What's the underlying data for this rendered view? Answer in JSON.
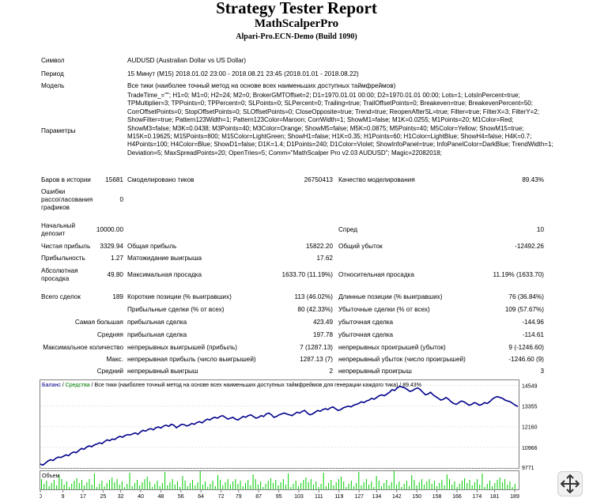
{
  "header": {
    "title": "Strategy Tester Report",
    "subtitle": "MathScalperPro",
    "build": "Alpari-Pro.ECN-Demo (Build 1090)"
  },
  "info": {
    "symbol_label": "Символ",
    "symbol_value": "AUDUSD (Australian Dollar vs US Dollar)",
    "period_label": "Период",
    "period_value": "15 Минут (M15) 2018.01.02 23:00 - 2018.08.21 23:45 (2018.01.01 - 2018.08.22)",
    "model_label": "Модель",
    "model_value": "Все тики (наиболее точный метод на основе всех наименьших доступных таймфреймов)",
    "params_label": "Параметры",
    "params_value": "TradeTime_=\"\"; H1=0; M1=0; H2=24; M2=0; BrokerGMTOffset=2; D1=1970.01.01 00:00; D2=1970.01.01 00:00; Lots=1; LotsInPercent=true; TPMultiplier=3; TPPoints=0; TPPercent=0; SLPoints=0; SLPercent=0; Trailing=true; TrailOffsetPoints=0; Breakeven=true; BreakevenPercent=50; CorrOffsetPoints=0; StopOffsetPoints=0; SLOffsetPoints=0; CloseOpposite=true; Trend=true; ReopenAfterSL=true; Filter=true; FilterX=3; FilterY=2; ShowFilter=true; Pattern123Width=1; Pattern123Color=Maroon; CorrWidth=1; ShowM1=false; M1K=0.0255; M1Points=20; M1Color=Red; ShowM3=false; M3K=0.0438; M3Points=40; M3Color=Orange; ShowM5=false; M5K=0.0875; M5Points=40; M5Color=Yellow; ShowM15=true; M15K=0.19625; M15Points=800; M15Color=LightGreen; ShowH1=false; H1K=0.35; H1Points=60; H1Color=LightBlue; ShowH4=false; H4K=0.7; H4Points=100; H4Color=Blue; ShowD1=false; D1K=1.4; D1Points=240; D1Color=Violet; ShowInfoPanel=true; InfoPanelColor=DarkBlue; TrendWidth=1; Deviation=5; MaxSpreadPoints=20; OpenTries=5; Comm=\"MathScalper Pro v2.03 AUDUSD\"; Magic=22082018;"
  },
  "stats": {
    "bars_label": "Баров в истории",
    "bars_value": "15681",
    "ticks_label": "Смоделировано тиков",
    "ticks_value": "26750413",
    "quality_label": "Качество моделирования",
    "quality_value": "89.43%",
    "errors_label": "Ошибки рассогласования графиков",
    "errors_value": "0",
    "deposit_label": "Начальный депозит",
    "deposit_value": "10000.00",
    "spread_label": "Спред",
    "spread_value": "10",
    "net_label": "Чистая прибыль",
    "net_value": "3329.94",
    "gross_profit_label": "Общая прибыль",
    "gross_profit_value": "15822.20",
    "gross_loss_label": "Общий убыток",
    "gross_loss_value": "-12492.26",
    "pf_label": "Прибыльность",
    "pf_value": "1.27",
    "expected_label": "Матожидание выигрыша",
    "expected_value": "17.62",
    "abs_dd_label": "Абсолютная просадка",
    "abs_dd_value": "49.80",
    "max_dd_label": "Максимальная просадка",
    "max_dd_value": "1633.70 (11.19%)",
    "rel_dd_label": "Относительная просадка",
    "rel_dd_value": "11.19% (1633.70)",
    "total_label": "Всего сделок",
    "total_value": "189",
    "short_label": "Короткие позиции (% выигравших)",
    "short_value": "113 (46.02%)",
    "long_label": "Длинные позиции (% выигравших)",
    "long_value": "76 (36.84%)",
    "win_label": "Прибыльные сделки (% от всех)",
    "win_value": "80 (42.33%)",
    "loss_label": "Убыточные сделки (% от всех)",
    "loss_value": "109 (57.67%)",
    "largest_pre": "Самая большая",
    "largest_win_label": "прибыльная сделка",
    "largest_win_value": "423.49",
    "largest_loss_label": "убыточная сделка",
    "largest_loss_value": "-144.96",
    "average_pre": "Средняя",
    "avg_win_label": "прибыльная сделка",
    "avg_win_value": "197.78",
    "avg_loss_label": "убыточная сделка",
    "avg_loss_value": "-114.61",
    "maxcount_pre": "Максимальное количество",
    "cons_wins_label": "непрерывных выигрышей (прибыль)",
    "cons_wins_value": "7 (1287.13)",
    "cons_losses_label": "непрерывных проигрышей (убыток)",
    "cons_losses_value": "9 (-1246.60)",
    "max_pre": "Макс.",
    "cons_profit_label": "непрерывная прибыль (число выигрышей)",
    "cons_profit_value": "1287.13 (7)",
    "cons_loss_label": "непрерывный убыток (число проигрышей)",
    "cons_loss_value": "-1246.60 (9)",
    "avg_pre": "Средний",
    "avg_cons_wins_label": "непрерывный выигрыш",
    "avg_cons_wins_value": "2",
    "avg_cons_losses_label": "непрерывный проигрыш",
    "avg_cons_losses_value": "3"
  },
  "chart_data": {
    "type": "line",
    "legend": {
      "balance": "Баланс",
      "equity": "Средства",
      "desc": "Все тики (наиболее точный метод на основе всех наименьших доступных таймфреймов для генерации каждого тика)",
      "quality": "89.43%"
    },
    "volume_label": "Объем",
    "y_ticks": [
      "14549",
      "13355",
      "12160",
      "10966",
      "9771"
    ],
    "ylim": [
      9771,
      14800
    ],
    "x_ticks": [
      "0",
      "9",
      "17",
      "25",
      "32",
      "40",
      "48",
      "56",
      "64",
      "72",
      "79",
      "87",
      "95",
      "103",
      "111",
      "119",
      "127",
      "134",
      "142",
      "150",
      "158",
      "166",
      "174",
      "181",
      "189"
    ],
    "xlim": [
      0,
      189
    ],
    "series": [
      {
        "values": [
          10000,
          9940,
          10060,
          10180,
          10250,
          10200,
          10330,
          10400,
          10380,
          10450,
          10530,
          10480,
          10620,
          10700,
          10660,
          10780,
          10900,
          10850,
          10980,
          11050,
          11000,
          11100,
          11150,
          11230,
          11180,
          11300,
          11400,
          11350,
          11450,
          11420,
          11530,
          11600,
          11550,
          11650,
          11700,
          11680,
          11750,
          11800,
          11720,
          11850,
          11950,
          11900,
          12000,
          12050,
          11980,
          12100,
          12150,
          12080,
          12200,
          12250,
          12180,
          12300,
          12250,
          12100,
          12200,
          12300,
          12280,
          12200,
          12250,
          12350,
          12300,
          12400,
          12450,
          12380,
          12500,
          12600,
          12550,
          12650,
          12700,
          12650,
          12750,
          12800,
          12700,
          12600,
          12650,
          12700,
          12600,
          12550,
          12650,
          12750,
          12700,
          12800,
          12850,
          12750,
          12650,
          12700,
          12800,
          12750,
          12900,
          12950,
          12850,
          12700,
          12750,
          12850,
          12900,
          12950,
          12900,
          12850,
          12800,
          12900,
          13000,
          12950,
          13050,
          13100,
          12950,
          12850,
          12900,
          13000,
          13100,
          13050,
          13150,
          13200,
          13150,
          13250,
          13300,
          13200,
          13100,
          13150,
          13250,
          13300,
          13350,
          13300,
          13400,
          13450,
          13500,
          13600,
          13550,
          13650,
          13700,
          13800,
          13750,
          13850,
          13950,
          14000,
          13950,
          14050,
          14150,
          14300,
          14250,
          14400,
          14500,
          14450,
          14400,
          14300,
          14200,
          14250,
          14350,
          14400,
          14300,
          14150,
          14000,
          14050,
          14150,
          14000,
          13900,
          13800,
          13700,
          13750,
          13850,
          13750,
          13600,
          13500,
          13450,
          13550,
          13650,
          13600,
          13500,
          13400,
          13450,
          13550,
          13500,
          13400,
          13450,
          13550,
          13500,
          13600,
          13750,
          13850,
          13900,
          13850,
          13800,
          13700,
          13650,
          13600,
          13500,
          13400,
          13330
        ]
      }
    ]
  },
  "colors": {
    "balance": "#00008b",
    "equity": "#008000",
    "volume": "#00cc00",
    "axis": "#808080"
  }
}
